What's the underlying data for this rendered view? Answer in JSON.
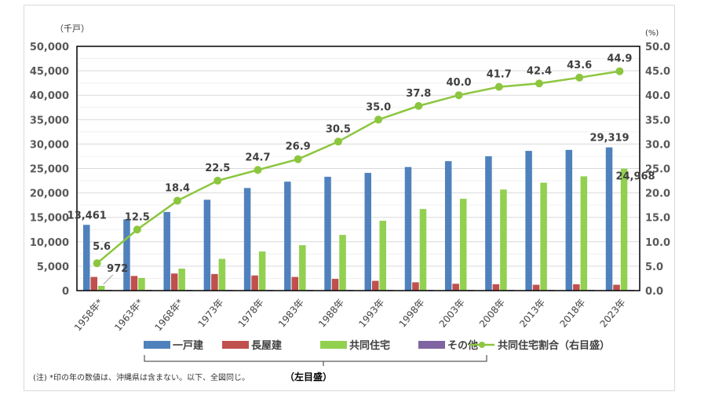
{
  "chart_data": {
    "type": "bar",
    "left_unit": "（千戸）",
    "right_unit": "(%)",
    "categories": [
      "1958年*",
      "1963年*",
      "1968年*",
      "1973年",
      "1978年",
      "1983年",
      "1988年",
      "1993年",
      "1998年",
      "2003年",
      "2008年",
      "2013年",
      "2018年",
      "2023年"
    ],
    "ylim": [
      0,
      50000
    ],
    "y2lim": [
      0,
      50
    ],
    "yticks": [
      "0",
      "5,000",
      "10,000",
      "15,000",
      "20,000",
      "25,000",
      "30,000",
      "35,000",
      "40,000",
      "45,000",
      "50,000"
    ],
    "y2ticks": [
      "0.0",
      "5.0",
      "10.0",
      "15.0",
      "20.0",
      "25.0",
      "30.0",
      "35.0",
      "40.0",
      "45.0",
      "50.0"
    ],
    "series": [
      {
        "name": "一戸建",
        "color": "#4f81bd",
        "values": [
          13461,
          14600,
          16100,
          18600,
          21000,
          22300,
          23300,
          24100,
          25300,
          26500,
          27500,
          28600,
          28800,
          29319
        ]
      },
      {
        "name": "長屋建",
        "color": "#c0504d",
        "values": [
          2800,
          3000,
          3500,
          3400,
          3100,
          2800,
          2400,
          2000,
          1700,
          1400,
          1300,
          1200,
          1300,
          1200
        ]
      },
      {
        "name": "共同住宅",
        "color": "#92d050",
        "values": [
          972,
          2600,
          4500,
          6500,
          8000,
          9300,
          11400,
          14300,
          16700,
          18800,
          20700,
          22100,
          23400,
          24968
        ]
      },
      {
        "name": "その他",
        "color": "#8064a2",
        "values": [
          150,
          150,
          150,
          150,
          150,
          150,
          150,
          150,
          150,
          150,
          150,
          150,
          150,
          150
        ]
      }
    ],
    "line": {
      "name": "共同住宅割合（右目盛）",
      "color": "#8cc63f",
      "values": [
        5.6,
        12.5,
        18.4,
        22.5,
        24.7,
        26.9,
        30.5,
        35.0,
        37.8,
        40.0,
        41.7,
        42.4,
        43.6,
        44.9
      ],
      "labels": [
        "5.6",
        "12.5",
        "18.4",
        "22.5",
        "24.7",
        "26.9",
        "30.5",
        "35.0",
        "37.8",
        "40.0",
        "41.7",
        "42.4",
        "43.6",
        "44.9"
      ]
    },
    "bar_labels": [
      {
        "text": "13,461",
        "series": 0,
        "index": 0
      },
      {
        "text": "972",
        "series": 2,
        "index": 0
      },
      {
        "text": "29,319",
        "series": 0,
        "index": 13
      },
      {
        "text": "24,968",
        "series": 2,
        "index": 13
      }
    ],
    "left_axis_note": "（左目盛）",
    "legend_position": "bottom",
    "footnote": "(注) *印の年の数値は、沖縄県は含まない。以下、全図同じ。"
  }
}
